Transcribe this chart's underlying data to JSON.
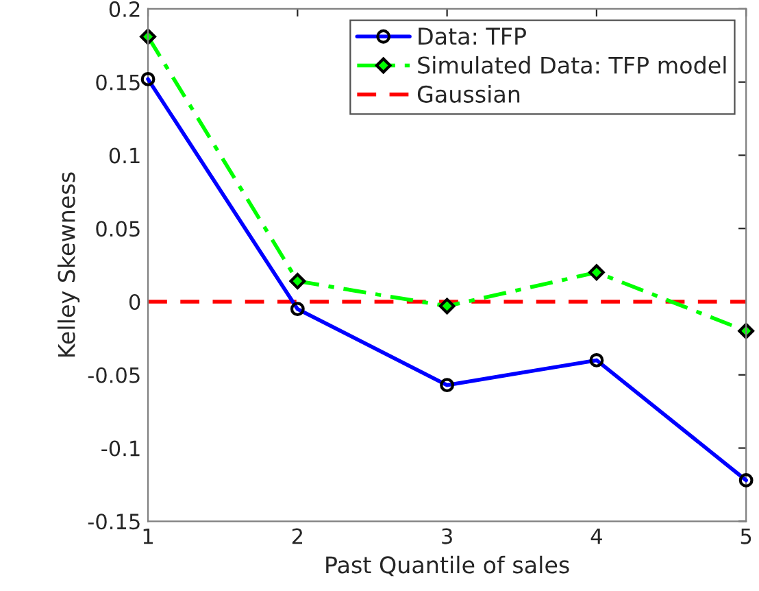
{
  "chart_data": {
    "type": "line",
    "xlabel": "Past Quantile of sales",
    "ylabel": "Kelley Skewness",
    "x": [
      1,
      2,
      3,
      4,
      5
    ],
    "series": [
      {
        "name": "Data: TFP",
        "color": "#0000ff",
        "values": [
          0.152,
          -0.005,
          -0.057,
          -0.04,
          -0.122
        ],
        "marker": "circle",
        "line_style": "solid"
      },
      {
        "name": "Simulated Data: TFP model",
        "color": "#00ff00",
        "values": [
          0.181,
          0.014,
          -0.003,
          0.02,
          -0.02
        ],
        "marker": "diamond",
        "line_style": "dashdot"
      },
      {
        "name": "Gaussian",
        "color": "#ff0000",
        "values": [
          0,
          0,
          0,
          0,
          0
        ],
        "marker": "none",
        "line_style": "dashed"
      }
    ],
    "xlim": [
      1,
      5
    ],
    "xticks": [
      1,
      2,
      3,
      4,
      5
    ],
    "ylim": [
      -0.15,
      0.2
    ],
    "yticks": [
      -0.15,
      -0.1,
      -0.05,
      0,
      0.05,
      0.1,
      0.15,
      0.2
    ],
    "grid": false,
    "legend": "top right"
  }
}
